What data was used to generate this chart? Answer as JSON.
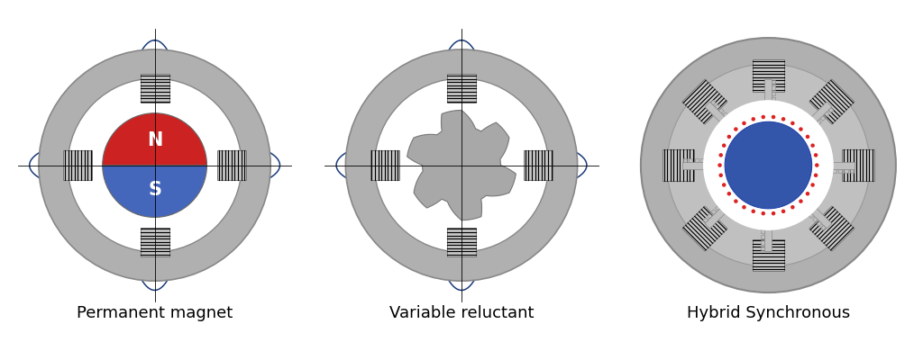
{
  "labels": [
    "Permanent magnet",
    "Variable reluctant",
    "Hybrid Synchronous"
  ],
  "label_fontsize": 13,
  "bg_color": "#ffffff",
  "wire_color": "#1a3a7a",
  "red_magnet": "#cc2222",
  "blue_magnet": "#4466bb",
  "blue_rotor": "#3355aa",
  "red_dot": "#dd2222",
  "gray_ring": "#b0b0b0",
  "gray_coil_bg": "#c8c8c8",
  "gray_rotor": "#a8a8a8",
  "gray_stator_inner": "#c0c0c0"
}
